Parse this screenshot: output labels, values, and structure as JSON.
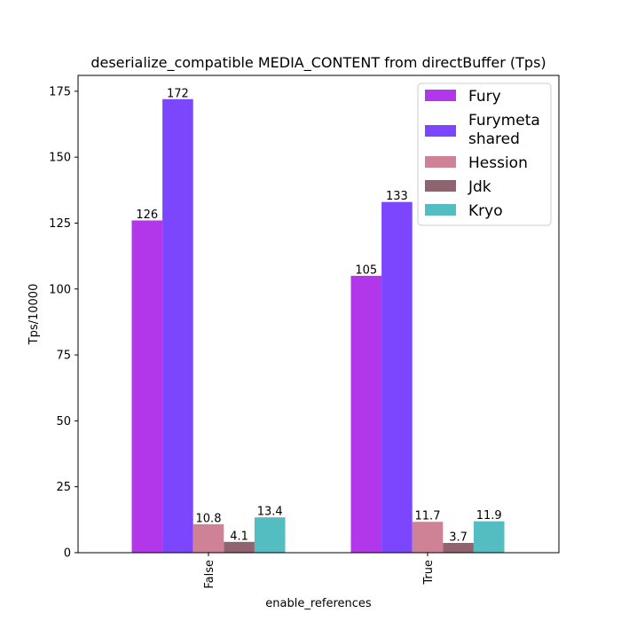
{
  "chart_data": {
    "type": "bar",
    "title": "deserialize_compatible MEDIA_CONTENT from directBuffer (Tps)",
    "xlabel": "enable_references",
    "ylabel": "Tps/10000",
    "categories": [
      "False",
      "True"
    ],
    "ylim": [
      0,
      181
    ],
    "yticks": [
      0,
      25,
      50,
      75,
      100,
      125,
      150,
      175
    ],
    "grid": false,
    "legend_position": "top-right",
    "series": [
      {
        "name": "Fury",
        "values": [
          126,
          105
        ],
        "labels": [
          "126",
          "105"
        ],
        "color": "#b236ea"
      },
      {
        "name": "Furymeta\nshared",
        "values": [
          172,
          133
        ],
        "labels": [
          "172",
          "133"
        ],
        "color": "#7b46fe"
      },
      {
        "name": "Hession",
        "values": [
          10.8,
          11.7
        ],
        "labels": [
          "10.8",
          "11.7"
        ],
        "color": "#cf8295"
      },
      {
        "name": "Jdk",
        "values": [
          4.1,
          3.7
        ],
        "labels": [
          "4.1",
          "3.7"
        ],
        "color": "#8f6470"
      },
      {
        "name": "Kryo",
        "values": [
          13.4,
          11.9
        ],
        "labels": [
          "13.4",
          "11.9"
        ],
        "color": "#53bdc2"
      }
    ]
  }
}
